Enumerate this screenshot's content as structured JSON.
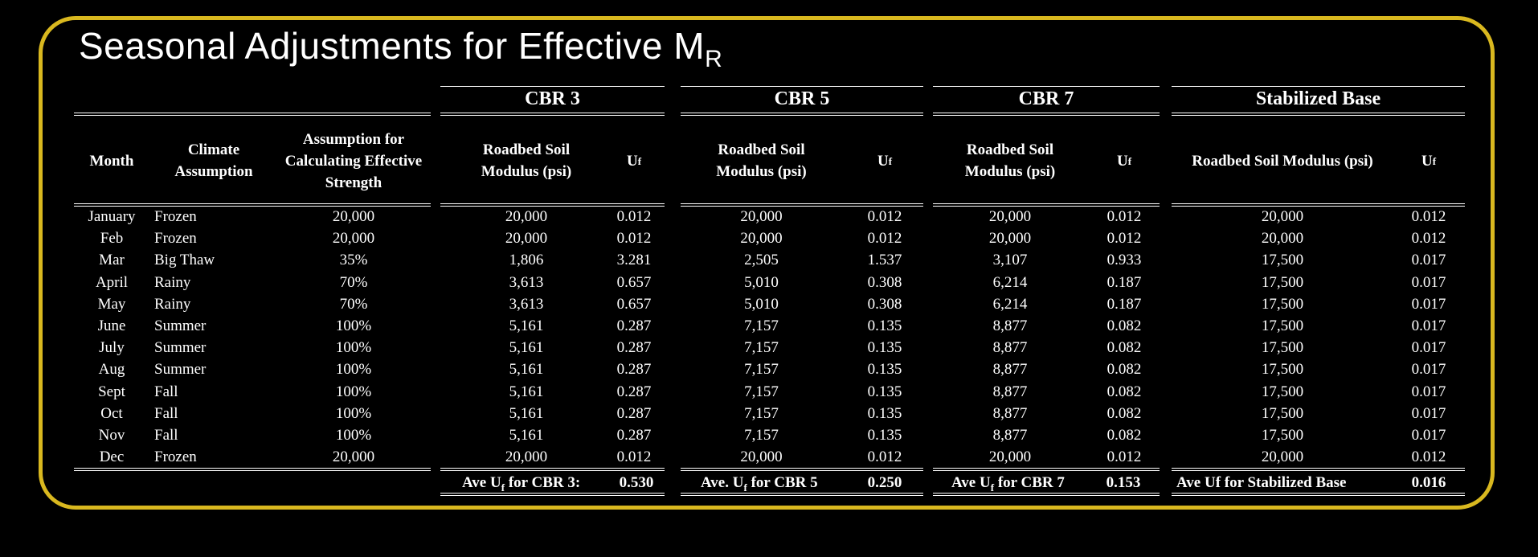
{
  "title": {
    "main": "Seasonal Adjustments for Effective M",
    "sub": "R"
  },
  "groups": [
    {
      "label": "CBR 3"
    },
    {
      "label": "CBR 5"
    },
    {
      "label": "CBR 7"
    },
    {
      "label": "Stabilized Base"
    }
  ],
  "headers": {
    "month": "Month",
    "climate": "Climate Assumption",
    "assumption": "Assumption for Calculating Effective Strength",
    "cbr3_modulus": "Roadbed Soil Modulus (psi)",
    "cbr5_modulus": "Roadbed Soil Modulus (psi)",
    "cbr7_modulus": "Roadbed Soil Modulus (psi)",
    "stab_modulus": "Roadbed Soil Modulus (psi)",
    "uf": "U",
    "uf_sub": "f"
  },
  "rows": [
    {
      "month": "January",
      "climate": "Frozen",
      "assumption": "20,000",
      "m3": "20,000",
      "u3": "0.012",
      "m5": "20,000",
      "u5": "0.012",
      "m7": "20,000",
      "u7": "0.012",
      "ms": "20,000",
      "us": "0.012"
    },
    {
      "month": "Feb",
      "climate": "Frozen",
      "assumption": "20,000",
      "m3": "20,000",
      "u3": "0.012",
      "m5": "20,000",
      "u5": "0.012",
      "m7": "20,000",
      "u7": "0.012",
      "ms": "20,000",
      "us": "0.012"
    },
    {
      "month": "Mar",
      "climate": "Big Thaw",
      "assumption": "35%",
      "m3": "1,806",
      "u3": "3.281",
      "m5": "2,505",
      "u5": "1.537",
      "m7": "3,107",
      "u7": "0.933",
      "ms": "17,500",
      "us": "0.017"
    },
    {
      "month": "April",
      "climate": "Rainy",
      "assumption": "70%",
      "m3": "3,613",
      "u3": "0.657",
      "m5": "5,010",
      "u5": "0.308",
      "m7": "6,214",
      "u7": "0.187",
      "ms": "17,500",
      "us": "0.017"
    },
    {
      "month": "May",
      "climate": "Rainy",
      "assumption": "70%",
      "m3": "3,613",
      "u3": "0.657",
      "m5": "5,010",
      "u5": "0.308",
      "m7": "6,214",
      "u7": "0.187",
      "ms": "17,500",
      "us": "0.017"
    },
    {
      "month": "June",
      "climate": "Summer",
      "assumption": "100%",
      "m3": "5,161",
      "u3": "0.287",
      "m5": "7,157",
      "u5": "0.135",
      "m7": "8,877",
      "u7": "0.082",
      "ms": "17,500",
      "us": "0.017"
    },
    {
      "month": "July",
      "climate": "Summer",
      "assumption": "100%",
      "m3": "5,161",
      "u3": "0.287",
      "m5": "7,157",
      "u5": "0.135",
      "m7": "8,877",
      "u7": "0.082",
      "ms": "17,500",
      "us": "0.017"
    },
    {
      "month": "Aug",
      "climate": "Summer",
      "assumption": "100%",
      "m3": "5,161",
      "u3": "0.287",
      "m5": "7,157",
      "u5": "0.135",
      "m7": "8,877",
      "u7": "0.082",
      "ms": "17,500",
      "us": "0.017"
    },
    {
      "month": "Sept",
      "climate": "Fall",
      "assumption": "100%",
      "m3": "5,161",
      "u3": "0.287",
      "m5": "7,157",
      "u5": "0.135",
      "m7": "8,877",
      "u7": "0.082",
      "ms": "17,500",
      "us": "0.017"
    },
    {
      "month": "Oct",
      "climate": "Fall",
      "assumption": "100%",
      "m3": "5,161",
      "u3": "0.287",
      "m5": "7,157",
      "u5": "0.135",
      "m7": "8,877",
      "u7": "0.082",
      "ms": "17,500",
      "us": "0.017"
    },
    {
      "month": "Nov",
      "climate": "Fall",
      "assumption": "100%",
      "m3": "5,161",
      "u3": "0.287",
      "m5": "7,157",
      "u5": "0.135",
      "m7": "8,877",
      "u7": "0.082",
      "ms": "17,500",
      "us": "0.017"
    },
    {
      "month": "Dec",
      "climate": "Frozen",
      "assumption": "20,000",
      "m3": "20,000",
      "u3": "0.012",
      "m5": "20,000",
      "u5": "0.012",
      "m7": "20,000",
      "u7": "0.012",
      "ms": "20,000",
      "us": "0.012"
    }
  ],
  "footer": {
    "cbr3": {
      "pre": "Ave U",
      "sub": "f",
      "post": " for CBR 3:",
      "value": "0.530"
    },
    "cbr5": {
      "pre": "Ave. U",
      "sub": "f",
      "post": " for CBR 5",
      "value": "0.250"
    },
    "cbr7": {
      "pre": "Ave U",
      "sub": "f",
      "post": " for CBR 7",
      "value": "0.153"
    },
    "stab": {
      "label": "Ave Uf for Stabilized Base",
      "value": "0.016"
    }
  },
  "colors": {
    "border": "#d9b81f",
    "background": "#000000",
    "text": "#ffffff"
  }
}
